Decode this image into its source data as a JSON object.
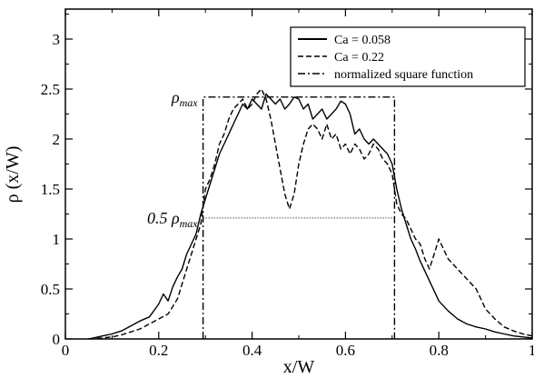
{
  "chart_data": {
    "type": "line",
    "xlabel": "x/W",
    "ylabel": "ρ (x/W)",
    "xlim": [
      0,
      1
    ],
    "ylim": [
      0,
      3.3
    ],
    "xticks": [
      0,
      0.2,
      0.4,
      0.6,
      0.8,
      1
    ],
    "yticks": [
      0,
      0.5,
      1,
      1.5,
      2,
      2.5,
      3
    ],
    "x_tick_labels": [
      "0",
      "0.2",
      "0.4",
      "0.6",
      "0.8",
      "1"
    ],
    "y_tick_labels": [
      "0",
      "0.5",
      "1",
      "1.5",
      "2",
      "2.5",
      "3"
    ],
    "legend_position": "top-right",
    "series": [
      {
        "name": "Ca = 0.058",
        "style": "solid",
        "x": [
          0.05,
          0.08,
          0.1,
          0.12,
          0.14,
          0.16,
          0.18,
          0.2,
          0.21,
          0.22,
          0.23,
          0.24,
          0.25,
          0.26,
          0.27,
          0.28,
          0.29,
          0.3,
          0.31,
          0.32,
          0.33,
          0.34,
          0.35,
          0.36,
          0.37,
          0.38,
          0.39,
          0.4,
          0.41,
          0.42,
          0.43,
          0.44,
          0.45,
          0.46,
          0.47,
          0.48,
          0.49,
          0.5,
          0.51,
          0.52,
          0.53,
          0.54,
          0.55,
          0.56,
          0.57,
          0.58,
          0.59,
          0.6,
          0.61,
          0.62,
          0.63,
          0.64,
          0.65,
          0.66,
          0.67,
          0.68,
          0.69,
          0.7,
          0.71,
          0.72,
          0.73,
          0.74,
          0.75,
          0.76,
          0.77,
          0.78,
          0.79,
          0.8,
          0.82,
          0.84,
          0.86,
          0.88,
          0.9,
          0.92,
          0.94,
          0.96,
          0.98,
          1.0
        ],
        "y": [
          0.0,
          0.03,
          0.05,
          0.08,
          0.13,
          0.18,
          0.22,
          0.35,
          0.45,
          0.38,
          0.52,
          0.62,
          0.7,
          0.85,
          0.95,
          1.05,
          1.25,
          1.4,
          1.55,
          1.7,
          1.85,
          1.95,
          2.05,
          2.15,
          2.25,
          2.35,
          2.3,
          2.4,
          2.35,
          2.3,
          2.45,
          2.4,
          2.35,
          2.4,
          2.3,
          2.35,
          2.42,
          2.4,
          2.3,
          2.35,
          2.2,
          2.25,
          2.3,
          2.2,
          2.25,
          2.3,
          2.38,
          2.35,
          2.25,
          2.05,
          2.1,
          2.0,
          1.95,
          2.0,
          1.95,
          1.9,
          1.85,
          1.75,
          1.5,
          1.3,
          1.15,
          1.0,
          0.9,
          0.78,
          0.68,
          0.58,
          0.48,
          0.38,
          0.28,
          0.2,
          0.15,
          0.12,
          0.1,
          0.07,
          0.05,
          0.03,
          0.02,
          0.01
        ]
      },
      {
        "name": "Ca = 0.22",
        "style": "dashed",
        "x": [
          0.05,
          0.08,
          0.1,
          0.12,
          0.14,
          0.16,
          0.18,
          0.2,
          0.22,
          0.24,
          0.25,
          0.26,
          0.27,
          0.28,
          0.29,
          0.3,
          0.31,
          0.32,
          0.33,
          0.34,
          0.35,
          0.36,
          0.37,
          0.38,
          0.39,
          0.4,
          0.41,
          0.42,
          0.43,
          0.44,
          0.45,
          0.46,
          0.47,
          0.48,
          0.49,
          0.5,
          0.51,
          0.52,
          0.53,
          0.54,
          0.55,
          0.56,
          0.57,
          0.58,
          0.59,
          0.6,
          0.61,
          0.62,
          0.63,
          0.64,
          0.65,
          0.66,
          0.67,
          0.68,
          0.69,
          0.7,
          0.71,
          0.72,
          0.73,
          0.74,
          0.75,
          0.76,
          0.77,
          0.78,
          0.79,
          0.8,
          0.81,
          0.82,
          0.83,
          0.84,
          0.85,
          0.86,
          0.87,
          0.88,
          0.89,
          0.9,
          0.92,
          0.94,
          0.96,
          0.98,
          1.0
        ],
        "y": [
          0.0,
          0.01,
          0.02,
          0.04,
          0.07,
          0.1,
          0.15,
          0.2,
          0.25,
          0.4,
          0.55,
          0.7,
          0.85,
          1.0,
          1.15,
          1.5,
          1.6,
          1.75,
          1.95,
          2.05,
          2.2,
          2.3,
          2.35,
          2.4,
          2.3,
          2.35,
          2.45,
          2.5,
          2.4,
          2.2,
          1.95,
          1.7,
          1.45,
          1.3,
          1.45,
          1.75,
          1.95,
          2.1,
          2.15,
          2.1,
          2.0,
          2.15,
          2.0,
          2.05,
          1.9,
          1.95,
          1.85,
          1.95,
          1.9,
          1.8,
          1.85,
          1.95,
          1.9,
          1.8,
          1.75,
          1.65,
          1.35,
          1.25,
          1.2,
          1.1,
          1.0,
          0.95,
          0.8,
          0.7,
          0.85,
          1.0,
          0.9,
          0.8,
          0.75,
          0.7,
          0.65,
          0.6,
          0.55,
          0.5,
          0.4,
          0.3,
          0.2,
          0.12,
          0.08,
          0.05,
          0.03
        ]
      },
      {
        "name": "normalized square function",
        "style": "dashdot",
        "x": [
          0.295,
          0.295,
          0.705,
          0.705
        ],
        "y": [
          0,
          2.42,
          2.42,
          0
        ]
      }
    ],
    "half_max_line": {
      "x": [
        0.295,
        0.705
      ],
      "y": [
        1.21,
        1.21
      ]
    },
    "annotations": [
      {
        "main": "ρ",
        "sub": "max",
        "x": 0.295,
        "y": 2.42
      },
      {
        "main": "0.5 ρ",
        "sub": "max",
        "x": 0.295,
        "y": 1.21
      }
    ]
  }
}
